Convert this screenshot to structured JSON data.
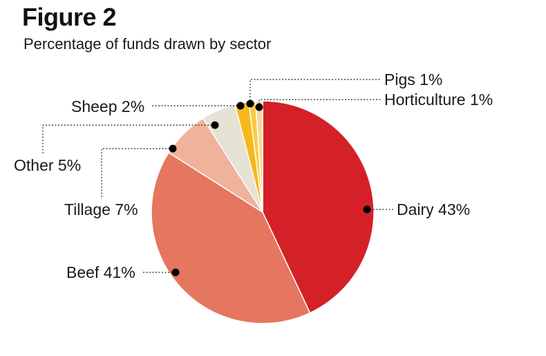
{
  "title": "Figure 2",
  "subtitle": "Percentage of funds drawn by sector",
  "chart_data": {
    "type": "pie",
    "title": "Figure 2",
    "subtitle": "Percentage of funds drawn by sector",
    "unit": "%",
    "start": "top",
    "direction": "clockwise",
    "slices": [
      {
        "key": "dairy",
        "name": "Dairy",
        "value": 43,
        "label": "Dairy 43%",
        "color": "#d42127"
      },
      {
        "key": "beef",
        "name": "Beef",
        "value": 41,
        "label": "Beef 41%",
        "color": "#e57660"
      },
      {
        "key": "tillage",
        "name": "Tillage",
        "value": 7,
        "label": "Tillage 7%",
        "color": "#efb39c"
      },
      {
        "key": "other",
        "name": "Other",
        "value": 5,
        "label": "Other 5%",
        "color": "#e6e2d4"
      },
      {
        "key": "sheep",
        "name": "Sheep",
        "value": 2,
        "label": "Sheep 2%",
        "color": "#f6b81c"
      },
      {
        "key": "pigs",
        "name": "Pigs",
        "value": 1,
        "label": "Pigs 1%",
        "color": "#f8ca45"
      },
      {
        "key": "horticulture",
        "name": "Horticulture",
        "value": 1,
        "label": "Horticulture 1%",
        "color": "#f4d99a"
      }
    ]
  }
}
